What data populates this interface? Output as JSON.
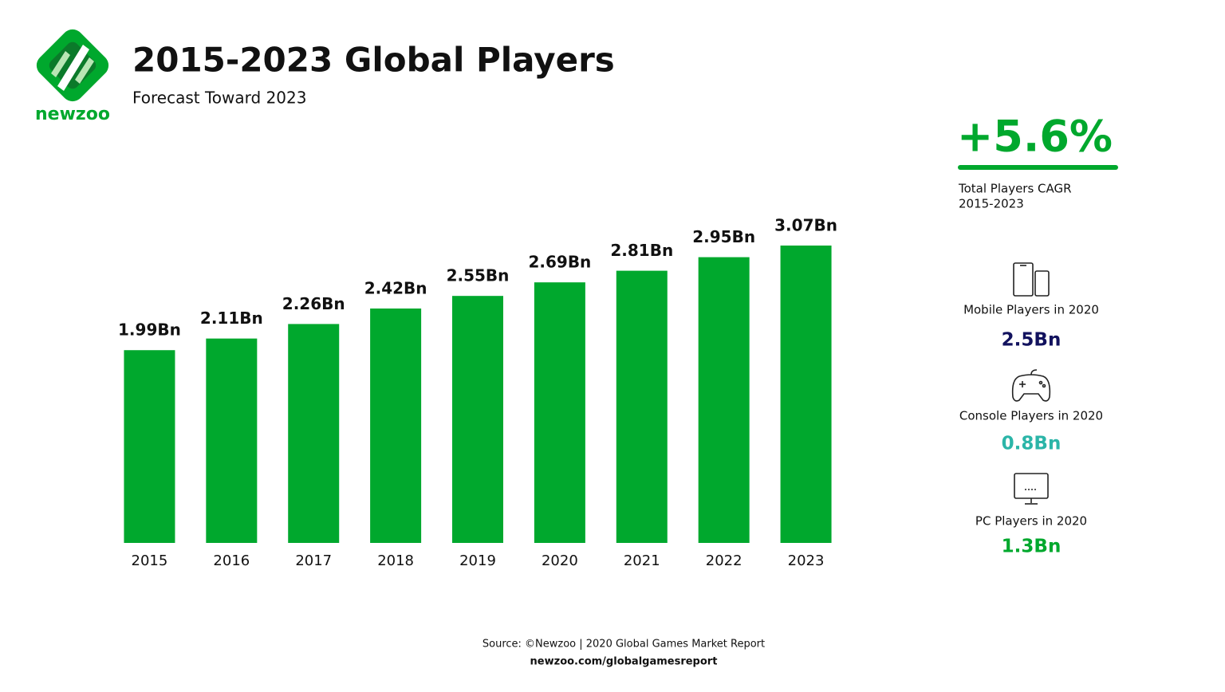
{
  "brand": "newzoo",
  "chart_data": {
    "type": "bar",
    "title": "2015-2023 Global Players",
    "subtitle": "Forecast Toward 2023",
    "categories": [
      "2015",
      "2016",
      "2017",
      "2018",
      "2019",
      "2020",
      "2021",
      "2022",
      "2023"
    ],
    "values": [
      1.99,
      2.11,
      2.26,
      2.42,
      2.55,
      2.69,
      2.81,
      2.95,
      3.07
    ],
    "value_labels": [
      "1.99Bn",
      "2.11Bn",
      "2.26Bn",
      "2.42Bn",
      "2.55Bn",
      "2.69Bn",
      "2.81Bn",
      "2.95Bn",
      "3.07Bn"
    ],
    "color": "#00a82d"
  },
  "highlight": {
    "value": "+5.6%",
    "label_lines": [
      "Total Players CAGR",
      "2015-2023"
    ]
  },
  "stats": [
    {
      "label": "Mobile Players in 2020",
      "value": "2.5Bn",
      "color": "#12125e"
    },
    {
      "label": "Console Players in 2020",
      "value": "0.8Bn",
      "color": "#2bb5a8"
    },
    {
      "label": "PC Players in 2020",
      "value": "1.3Bn",
      "color": "#00a82d"
    }
  ],
  "footer": {
    "source": "Source: ©Newzoo | 2020 Global Games Market Report",
    "url": "newzoo.com/globalgamesreport"
  }
}
